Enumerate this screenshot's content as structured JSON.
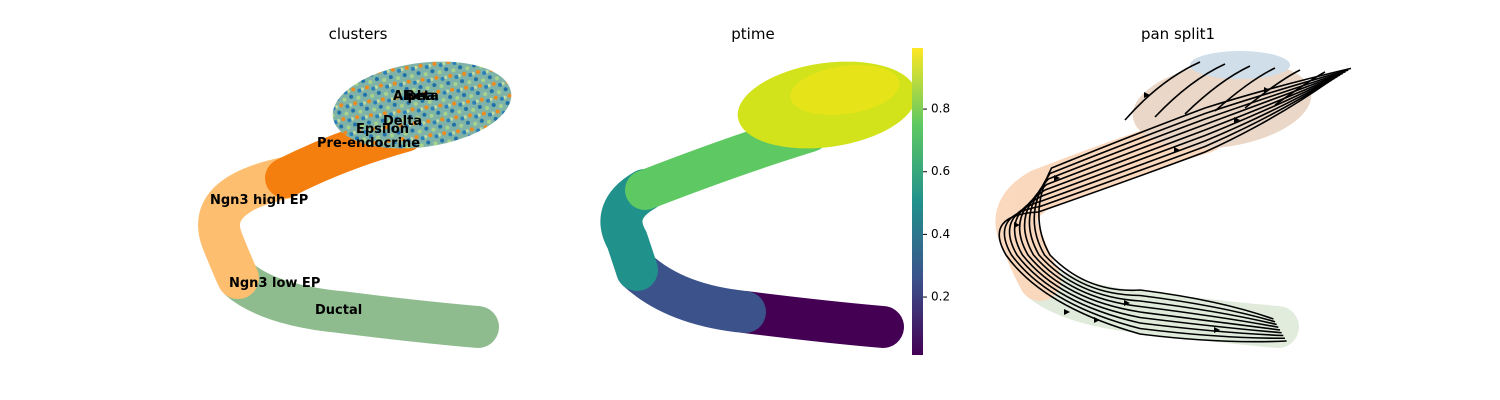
{
  "panels": [
    {
      "title": "clusters",
      "labels": [
        "Alpha",
        "Beta",
        "Delta",
        "Epsilon",
        "Pre-endocrine",
        "Ngn3 high EP",
        "Ngn3 low EP",
        "Ductal"
      ]
    },
    {
      "title": "ptime",
      "colorbar": {
        "clim": [
          0.015,
          0.995
        ],
        "ticks": [
          0.2,
          0.4,
          0.6,
          0.8
        ]
      }
    },
    {
      "title": "pan split1"
    }
  ]
}
